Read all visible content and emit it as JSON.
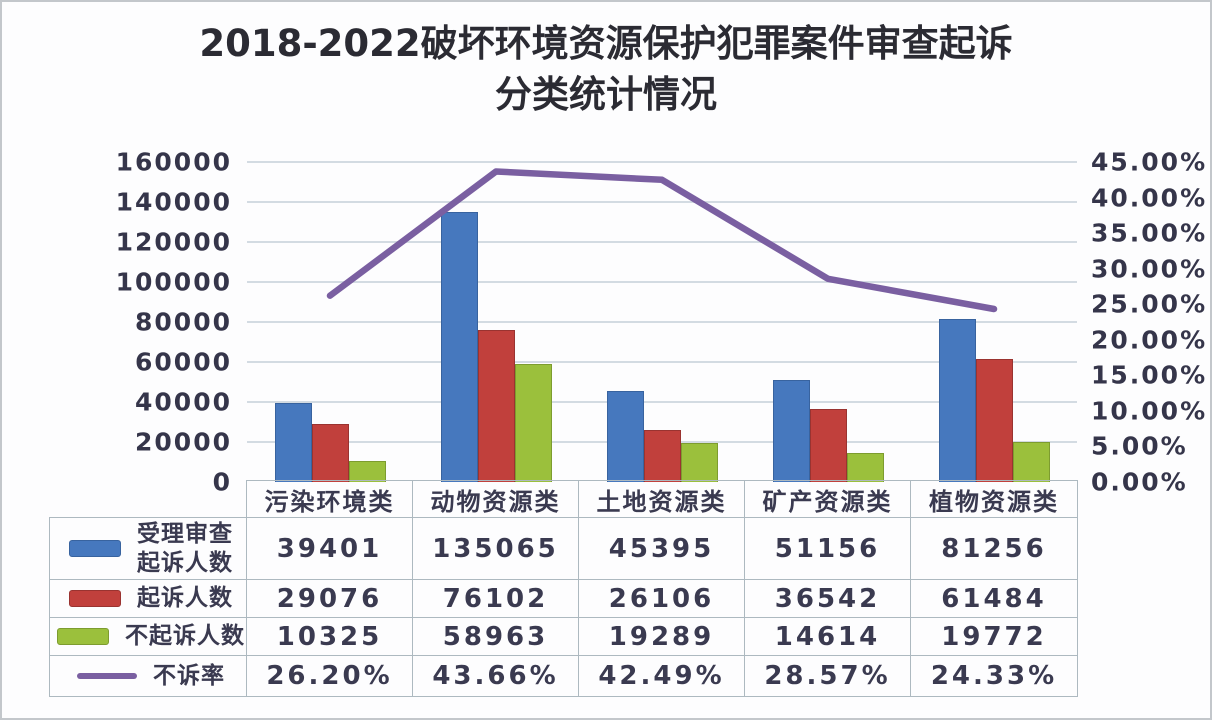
{
  "title": {
    "line1": "2018-2022破坏环境资源保护犯罪案件审查起诉",
    "line2": "分类统计情况"
  },
  "chart_data": {
    "type": "bar+line",
    "title": "2018-2022破坏环境资源保护犯罪案件审查起诉分类统计情况",
    "categories": [
      "污染环境类",
      "动物资源类",
      "土地资源类",
      "矿产资源类",
      "植物资源类"
    ],
    "series": [
      {
        "name": "受理审查起诉人数",
        "type": "bar",
        "axis": "left",
        "color": "#4678BE",
        "border": "#38639f",
        "values": [
          39401,
          135065,
          45395,
          51156,
          81256
        ]
      },
      {
        "name": "起诉人数",
        "type": "bar",
        "axis": "left",
        "color": "#C1403C",
        "border": "#9a3330",
        "values": [
          29076,
          76102,
          26106,
          36542,
          61484
        ]
      },
      {
        "name": "不起诉人数",
        "type": "bar",
        "axis": "left",
        "color": "#9BC03C",
        "border": "#7d9c2f",
        "values": [
          10325,
          58963,
          19289,
          14614,
          19772
        ]
      },
      {
        "name": "不诉率",
        "type": "line",
        "axis": "right",
        "color": "#7A5FA1",
        "values": [
          26.2,
          43.66,
          42.49,
          28.57,
          24.33
        ]
      }
    ],
    "left_axis": {
      "min": 0,
      "max": 160000,
      "step": 20000,
      "ticks": [
        "160000",
        "140000",
        "120000",
        "100000",
        "80000",
        "60000",
        "40000",
        "20000",
        "0"
      ]
    },
    "right_axis": {
      "min": 0,
      "max": 45,
      "step": 5,
      "ticks": [
        "45.00%",
        "40.00%",
        "35.00%",
        "30.00%",
        "25.00%",
        "20.00%",
        "15.00%",
        "10.00%",
        "5.00%",
        "0.00%"
      ]
    },
    "gridlines": true,
    "legend_position": "table-left"
  },
  "table": {
    "header": [
      "污染环境类",
      "动物资源类",
      "土地资源类",
      "矿产资源类",
      "植物资源类"
    ],
    "rows": [
      {
        "label_lines": [
          "受理审查",
          "起诉人数"
        ],
        "swatch": "bar",
        "color": "#4678BE",
        "values": [
          "39401",
          "135065",
          "45395",
          "51156",
          "81256"
        ]
      },
      {
        "label_lines": [
          "起诉人数"
        ],
        "swatch": "bar",
        "color": "#C1403C",
        "values": [
          "29076",
          "76102",
          "26106",
          "36542",
          "61484"
        ]
      },
      {
        "label_lines": [
          "不起诉人数"
        ],
        "swatch": "bar",
        "color": "#9BC03C",
        "values": [
          "10325",
          "58963",
          "19289",
          "14614",
          "19772"
        ]
      },
      {
        "label_lines": [
          "不诉率"
        ],
        "swatch": "line",
        "color": "#7A5FA1",
        "values": [
          "26.20%",
          "43.66%",
          "42.49%",
          "28.57%",
          "24.33%"
        ]
      }
    ]
  }
}
